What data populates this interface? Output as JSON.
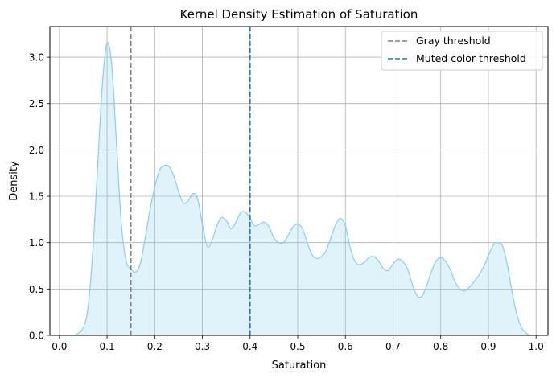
{
  "chart_data": {
    "type": "area",
    "title": "Kernel Density Estimation of Saturation",
    "xlabel": "Saturation",
    "ylabel": "Density",
    "xlim": [
      -0.02,
      1.025
    ],
    "ylim": [
      0,
      3.33
    ],
    "xticks": [
      "0.0",
      "0.1",
      "0.2",
      "0.3",
      "0.4",
      "0.5",
      "0.6",
      "0.7",
      "0.8",
      "0.9",
      "1.0"
    ],
    "yticks": [
      "0.0",
      "0.5",
      "1.0",
      "1.5",
      "2.0",
      "2.5",
      "3.0"
    ],
    "grid": true,
    "legend_position": "top-right",
    "series": [
      {
        "color": "#87ceeb",
        "fill": "#87ceeb",
        "x": [
          0.02,
          0.035,
          0.05,
          0.06,
          0.07,
          0.08,
          0.09,
          0.1,
          0.11,
          0.12,
          0.13,
          0.14,
          0.15,
          0.16,
          0.17,
          0.18,
          0.19,
          0.2,
          0.21,
          0.22,
          0.23,
          0.24,
          0.25,
          0.26,
          0.27,
          0.28,
          0.29,
          0.3,
          0.31,
          0.32,
          0.33,
          0.34,
          0.35,
          0.36,
          0.37,
          0.38,
          0.39,
          0.4,
          0.41,
          0.42,
          0.43,
          0.44,
          0.45,
          0.46,
          0.47,
          0.48,
          0.49,
          0.5,
          0.51,
          0.52,
          0.53,
          0.54,
          0.55,
          0.56,
          0.57,
          0.58,
          0.59,
          0.6,
          0.61,
          0.62,
          0.63,
          0.64,
          0.65,
          0.66,
          0.67,
          0.68,
          0.69,
          0.7,
          0.71,
          0.72,
          0.73,
          0.74,
          0.75,
          0.76,
          0.77,
          0.78,
          0.79,
          0.8,
          0.81,
          0.82,
          0.83,
          0.84,
          0.85,
          0.86,
          0.87,
          0.88,
          0.89,
          0.9,
          0.91,
          0.92,
          0.93,
          0.94,
          0.95,
          0.96,
          0.97,
          0.98,
          0.99
        ],
        "y": [
          0.0,
          0.01,
          0.08,
          0.3,
          0.9,
          1.8,
          2.7,
          3.15,
          2.9,
          2.05,
          1.2,
          0.8,
          0.72,
          0.68,
          0.78,
          1.05,
          1.35,
          1.6,
          1.78,
          1.83,
          1.82,
          1.72,
          1.55,
          1.43,
          1.45,
          1.53,
          1.47,
          1.2,
          0.96,
          1.02,
          1.18,
          1.27,
          1.24,
          1.15,
          1.22,
          1.32,
          1.33,
          1.26,
          1.18,
          1.2,
          1.22,
          1.17,
          1.05,
          1.0,
          1.0,
          1.08,
          1.17,
          1.2,
          1.15,
          1.0,
          0.87,
          0.83,
          0.85,
          0.92,
          1.06,
          1.2,
          1.26,
          1.18,
          0.95,
          0.8,
          0.76,
          0.79,
          0.84,
          0.85,
          0.8,
          0.72,
          0.7,
          0.77,
          0.82,
          0.8,
          0.72,
          0.56,
          0.43,
          0.42,
          0.53,
          0.68,
          0.8,
          0.84,
          0.8,
          0.71,
          0.58,
          0.5,
          0.48,
          0.52,
          0.58,
          0.65,
          0.74,
          0.86,
          0.97,
          1.0,
          0.96,
          0.75,
          0.46,
          0.22,
          0.08,
          0.02,
          0.0
        ]
      }
    ],
    "reference_lines": [
      {
        "name": "Gray threshold",
        "x": 0.15,
        "color": "#7f7f7f",
        "style": "dashed"
      },
      {
        "name": "Muted color threshold",
        "x": 0.4,
        "color": "#1f77b4",
        "style": "dashed"
      }
    ]
  }
}
